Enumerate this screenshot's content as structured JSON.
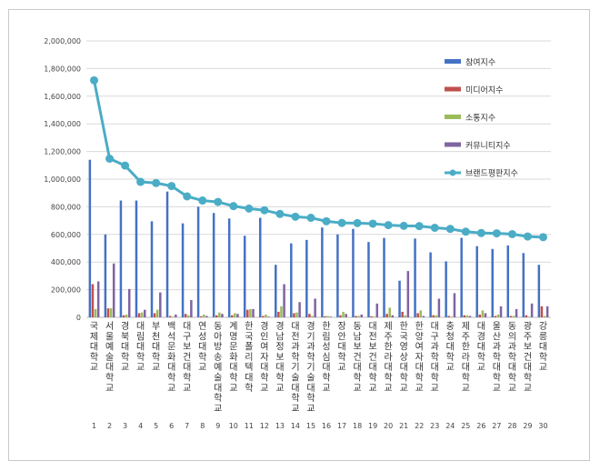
{
  "chart_data": {
    "type": "bar",
    "ylim": [
      0,
      2000000
    ],
    "yticks": [
      "0",
      "200,000",
      "400,000",
      "600,000",
      "800,000",
      "1,000,000",
      "1,200,000",
      "1,400,000",
      "1,600,000",
      "1,800,000",
      "2,000,000"
    ],
    "categories": [
      "국제대학교",
      "서울예술대학교",
      "경북대학교",
      "대림대학교",
      "부천대학교",
      "백석문화대학교",
      "대구보건대학교",
      "연성대학교",
      "동아방송예술대학교",
      "계명문화대학교",
      "한국폴리텍대학",
      "경인여자대학교",
      "경남정보대학교",
      "대전과학기술대학교",
      "경기과학기술대학교",
      "한림성심대학교",
      "장안대학교",
      "동남보건대학교",
      "대전보건대학교",
      "제주한라대학교",
      "한국영상대학교",
      "한양여자대학교",
      "대구과학대학교",
      "충청대학교",
      "제주한라대학교",
      "대경대학교",
      "울산과학대학교",
      "동의과학대학교",
      "광주보건대학교",
      "강릉대학교"
    ],
    "ranks": [
      "1",
      "2",
      "3",
      "4",
      "5",
      "6",
      "7",
      "8",
      "9",
      "10",
      "11",
      "12",
      "13",
      "14",
      "15",
      "16",
      "17",
      "18",
      "19",
      "20",
      "21",
      "22",
      "23",
      "24",
      "25",
      "26",
      "27",
      "28",
      "29",
      "30"
    ],
    "series": [
      {
        "name": "참여지수",
        "type": "bar",
        "color": "#4472c4",
        "values": [
          1140000,
          600000,
          845000,
          845000,
          695000,
          910000,
          680000,
          800000,
          755000,
          715000,
          590000,
          720000,
          380000,
          535000,
          560000,
          650000,
          600000,
          640000,
          545000,
          575000,
          265000,
          570000,
          470000,
          405000,
          575000,
          515000,
          495000,
          520000,
          465000,
          380000
        ]
      },
      {
        "name": "미디어지수",
        "type": "bar",
        "color": "#c0504d",
        "values": [
          240000,
          65000,
          15000,
          30000,
          30000,
          10000,
          25000,
          8000,
          15000,
          15000,
          55000,
          10000,
          40000,
          30000,
          25000,
          8000,
          15000,
          10000,
          8000,
          25000,
          40000,
          30000,
          15000,
          10000,
          15000,
          20000,
          10000,
          10000,
          15000,
          80000
        ]
      },
      {
        "name": "소통지수",
        "type": "bar",
        "color": "#9bbb59",
        "values": [
          60000,
          65000,
          20000,
          35000,
          55000,
          5000,
          15000,
          20000,
          35000,
          30000,
          60000,
          20000,
          80000,
          35000,
          10000,
          10000,
          40000,
          10000,
          5000,
          70000,
          15000,
          50000,
          15000,
          5000,
          15000,
          50000,
          20000,
          10000,
          5000,
          10000
        ]
      },
      {
        "name": "커뮤니티지수",
        "type": "bar",
        "color": "#8064a2",
        "values": [
          260000,
          390000,
          205000,
          55000,
          180000,
          20000,
          125000,
          10000,
          25000,
          25000,
          60000,
          5000,
          240000,
          110000,
          135000,
          5000,
          25000,
          20000,
          100000,
          15000,
          335000,
          10000,
          135000,
          175000,
          10000,
          30000,
          80000,
          60000,
          100000,
          80000
        ]
      },
      {
        "name": "브랜드평판지수",
        "type": "line",
        "color": "#4bacc6",
        "values": [
          1715000,
          1148000,
          1098000,
          980000,
          972000,
          950000,
          875000,
          845000,
          835000,
          805000,
          787000,
          775000,
          748000,
          728000,
          720000,
          695000,
          683000,
          682000,
          678000,
          667000,
          662000,
          660000,
          648000,
          640000,
          620000,
          610000,
          608000,
          602000,
          585000,
          580000
        ]
      }
    ],
    "legend_position": "right",
    "grid": true
  }
}
